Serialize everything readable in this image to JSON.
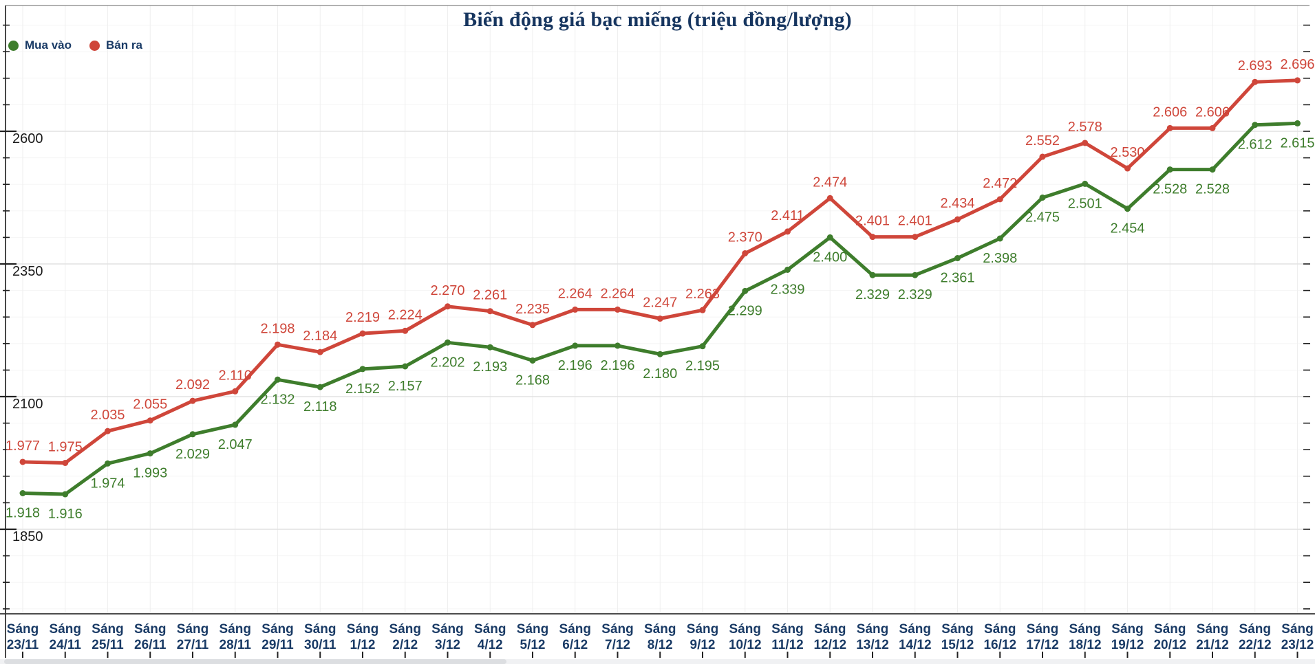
{
  "title": "Biến động giá bạc miếng (triệu đồng/lượng)",
  "legend": {
    "items": [
      {
        "label": "Mua vào",
        "color": "#3e7d2c"
      },
      {
        "label": "Bán ra",
        "color": "#cf463a"
      }
    ]
  },
  "chart_data": {
    "type": "line",
    "title": "Biến động giá bạc miếng (triệu đồng/lượng)",
    "x_prefix": "Sáng",
    "categories": [
      "23/11",
      "24/11",
      "25/11",
      "26/11",
      "27/11",
      "28/11",
      "29/11",
      "30/11",
      "1/12",
      "2/12",
      "3/12",
      "4/12",
      "5/12",
      "6/12",
      "7/12",
      "8/12",
      "9/12",
      "10/12",
      "11/12",
      "12/12",
      "13/12",
      "14/12",
      "15/12",
      "16/12",
      "17/12",
      "18/12",
      "19/12",
      "20/12",
      "21/12",
      "22/12",
      "23/12"
    ],
    "series": [
      {
        "name": "Mua vào",
        "color": "#3e7d2c",
        "label_position": "below",
        "values": [
          1918,
          1916,
          1974,
          1993,
          2029,
          2047,
          2132,
          2118,
          2152,
          2157,
          2202,
          2193,
          2168,
          2196,
          2196,
          2180,
          2195,
          2299,
          2339,
          2400,
          2329,
          2329,
          2361,
          2398,
          2475,
          2501,
          2454,
          2528,
          2528,
          2612,
          2615
        ]
      },
      {
        "name": "Bán ra",
        "color": "#cf463a",
        "label_position": "above",
        "values": [
          1977,
          1975,
          2035,
          2055,
          2092,
          2110,
          2198,
          2184,
          2219,
          2224,
          2270,
          2261,
          2235,
          2264,
          2264,
          2247,
          2263,
          2370,
          2411,
          2474,
          2401,
          2401,
          2434,
          2472,
          2552,
          2578,
          2530,
          2606,
          2606,
          2693,
          2696
        ]
      }
    ],
    "value_label_format": "thousands-dot",
    "y_axis": {
      "ticks": [
        1850,
        2100,
        2350,
        2600
      ],
      "minor_step": 50,
      "min": 1700,
      "max": 2800
    },
    "grid": true,
    "legend_position": "top-left",
    "colors": {
      "title_text": "#16355f",
      "axis_text": "#1a3b66",
      "y_tick_text": "#1a1a1a",
      "major_grid": "#e2e2e2",
      "minor_grid": "#f5f5f5",
      "vertical_grid": "#efefef",
      "axis_line": "#333333",
      "scrollbar_track": "#f0f1f3",
      "scrollbar_thumb": "#dcdee1"
    }
  }
}
